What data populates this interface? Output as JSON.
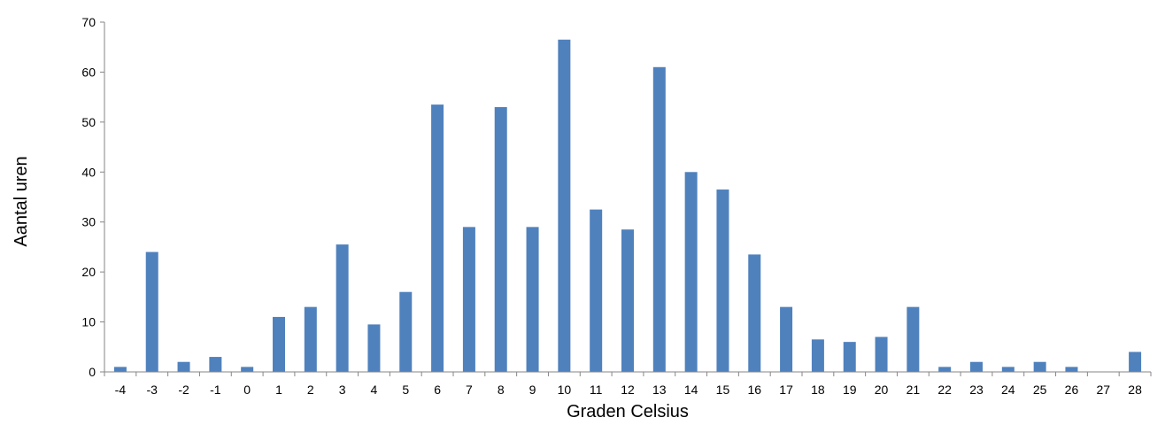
{
  "chart_data": {
    "type": "bar",
    "title": "",
    "xlabel": "Graden Celsius",
    "ylabel": "Aantal uren",
    "categories": [
      "-4",
      "-3",
      "-2",
      "-1",
      "0",
      "1",
      "2",
      "3",
      "4",
      "5",
      "6",
      "7",
      "8",
      "9",
      "10",
      "11",
      "12",
      "13",
      "14",
      "15",
      "16",
      "17",
      "18",
      "19",
      "20",
      "21",
      "22",
      "23",
      "24",
      "25",
      "26",
      "27",
      "28"
    ],
    "values": [
      1,
      24,
      2,
      3,
      1,
      11,
      13,
      25.5,
      9.5,
      16,
      53.5,
      29,
      53,
      29,
      66.5,
      32.5,
      28.5,
      61,
      40,
      36.5,
      23.5,
      13,
      6.5,
      6,
      7,
      13,
      1,
      2,
      1,
      2,
      1,
      0,
      4
    ],
    "ylim": [
      0,
      70
    ],
    "yticks": [
      "0",
      "10",
      "20",
      "30",
      "40",
      "50",
      "60",
      "70"
    ],
    "grid": false,
    "legend": "none",
    "bar_color": "#4F81BD",
    "axis_color": "#868686"
  }
}
